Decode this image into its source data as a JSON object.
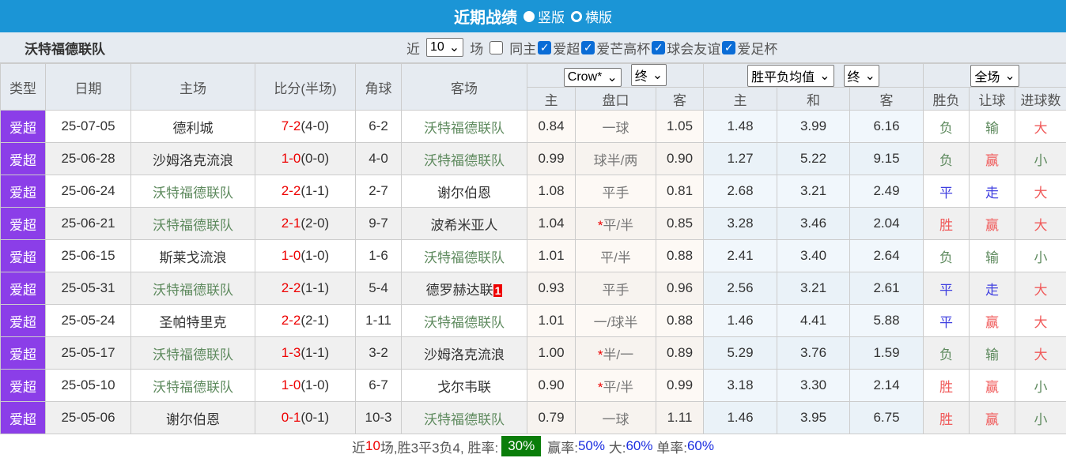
{
  "header": {
    "title": "近期战绩",
    "opt1": "竖版",
    "opt2": "横版"
  },
  "filter": {
    "team": "沃特福德联队",
    "near": "近",
    "count": "10",
    "unit": "场",
    "same_host": "同主",
    "leagues": [
      "爱超",
      "爱芒高杯",
      "球会友谊",
      "爱足杯"
    ]
  },
  "columns": {
    "type": "类型",
    "date": "日期",
    "home": "主场",
    "score": "比分(半场)",
    "corner": "角球",
    "away": "客场",
    "odds_company": "Crow*",
    "odds_stage": "终",
    "avg_sel": "胜平负均值",
    "avg_stage": "终",
    "scope": "全场",
    "sub": [
      "主",
      "盘口",
      "客",
      "主",
      "和",
      "客",
      "胜负",
      "让球",
      "进球数"
    ]
  },
  "rows": [
    {
      "type": "爱超",
      "date": "25-07-05",
      "home": "德利城",
      "hc": "",
      "score": "7-2",
      "half": "(4-0)",
      "corner": "6-2",
      "away": "沃特福德联队",
      "ac": "g",
      "o1": "0.84",
      "line": "一球",
      "star": "",
      "o2": "1.05",
      "w": "1.48",
      "d": "3.99",
      "l": "6.16",
      "res": "负",
      "ah": "输",
      "ou": "大"
    },
    {
      "type": "爱超",
      "date": "25-06-28",
      "home": "沙姆洛克流浪",
      "hc": "",
      "score": "1-0",
      "half": "(0-0)",
      "corner": "4-0",
      "away": "沃特福德联队",
      "ac": "g",
      "o1": "0.99",
      "line": "球半/两",
      "star": "",
      "o2": "0.90",
      "w": "1.27",
      "d": "5.22",
      "l": "9.15",
      "res": "负",
      "ah": "赢",
      "ou": "小"
    },
    {
      "type": "爱超",
      "date": "25-06-24",
      "home": "沃特福德联队",
      "hc": "g",
      "score": "2-2",
      "half": "(1-1)",
      "corner": "2-7",
      "away": "谢尔伯恩",
      "ac": "",
      "o1": "1.08",
      "line": "平手",
      "star": "",
      "o2": "0.81",
      "w": "2.68",
      "d": "3.21",
      "l": "2.49",
      "res": "平",
      "ah": "走",
      "ou": "大"
    },
    {
      "type": "爱超",
      "date": "25-06-21",
      "home": "沃特福德联队",
      "hc": "g",
      "score": "2-1",
      "half": "(2-0)",
      "corner": "9-7",
      "away": "波希米亚人",
      "ac": "",
      "o1": "1.04",
      "line": "平/半",
      "star": "*",
      "o2": "0.85",
      "w": "3.28",
      "d": "3.46",
      "l": "2.04",
      "res": "胜",
      "ah": "赢",
      "ou": "大"
    },
    {
      "type": "爱超",
      "date": "25-06-15",
      "home": "斯莱戈流浪",
      "hc": "",
      "score": "1-0",
      "half": "(1-0)",
      "corner": "1-6",
      "away": "沃特福德联队",
      "ac": "g",
      "o1": "1.01",
      "line": "平/半",
      "star": "",
      "o2": "0.88",
      "w": "2.41",
      "d": "3.40",
      "l": "2.64",
      "res": "负",
      "ah": "输",
      "ou": "小"
    },
    {
      "type": "爱超",
      "date": "25-05-31",
      "home": "沃特福德联队",
      "hc": "g",
      "score": "2-2",
      "half": "(1-1)",
      "corner": "5-4",
      "away": "德罗赫达联",
      "ac": "",
      "card": "1",
      "o1": "0.93",
      "line": "平手",
      "star": "",
      "o2": "0.96",
      "w": "2.56",
      "d": "3.21",
      "l": "2.61",
      "res": "平",
      "ah": "走",
      "ou": "大"
    },
    {
      "type": "爱超",
      "date": "25-05-24",
      "home": "圣帕特里克",
      "hc": "",
      "score": "2-2",
      "half": "(2-1)",
      "corner": "1-11",
      "away": "沃特福德联队",
      "ac": "g",
      "o1": "1.01",
      "line": "一/球半",
      "star": "",
      "o2": "0.88",
      "w": "1.46",
      "d": "4.41",
      "l": "5.88",
      "res": "平",
      "ah": "赢",
      "ou": "大"
    },
    {
      "type": "爱超",
      "date": "25-05-17",
      "home": "沃特福德联队",
      "hc": "g",
      "score": "1-3",
      "half": "(1-1)",
      "corner": "3-2",
      "away": "沙姆洛克流浪",
      "ac": "",
      "o1": "1.00",
      "line": "半/一",
      "star": "*",
      "o2": "0.89",
      "w": "5.29",
      "d": "3.76",
      "l": "1.59",
      "res": "负",
      "ah": "输",
      "ou": "大"
    },
    {
      "type": "爱超",
      "date": "25-05-10",
      "home": "沃特福德联队",
      "hc": "g",
      "score": "1-0",
      "half": "(1-0)",
      "corner": "6-7",
      "away": "戈尔韦联",
      "ac": "",
      "o1": "0.90",
      "line": "平/半",
      "star": "*",
      "o2": "0.99",
      "w": "3.18",
      "d": "3.30",
      "l": "2.14",
      "res": "胜",
      "ah": "赢",
      "ou": "小"
    },
    {
      "type": "爱超",
      "date": "25-05-06",
      "home": "谢尔伯恩",
      "hc": "",
      "score": "0-1",
      "half": "(0-1)",
      "corner": "10-3",
      "away": "沃特福德联队",
      "ac": "g",
      "o1": "0.79",
      "line": "一球",
      "star": "",
      "o2": "1.11",
      "w": "1.46",
      "d": "3.95",
      "l": "6.75",
      "res": "胜",
      "ah": "赢",
      "ou": "小"
    }
  ],
  "summary": {
    "p1": "近",
    "n": "10",
    "p2": "场,胜3平3负4, 胜率:",
    "win_rate": "30%",
    "ah_label": "赢率:",
    "ah_rate": "50%",
    "big_label": "大:",
    "big_rate": "60%",
    "odd_label": "单率:",
    "odd_rate": "60%"
  },
  "colors": {
    "header": "#1b95d6",
    "type_bg": "#8b3ee8",
    "win_rate_bg": "#0a7d0a"
  }
}
